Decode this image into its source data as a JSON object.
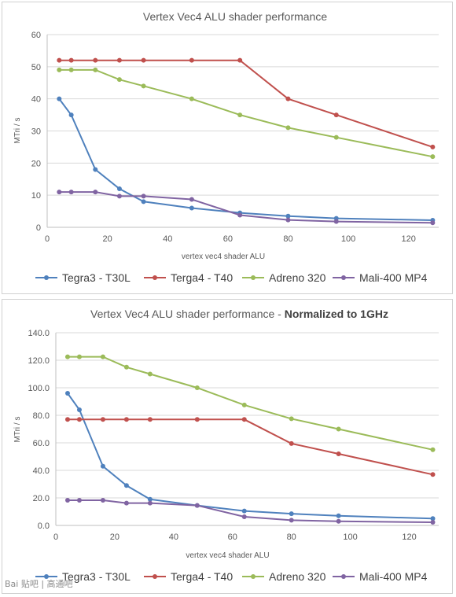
{
  "watermark": "Bai 贴吧 | 高通吧",
  "colors": {
    "Tegra3 - T30L": "#4f81bd",
    "Terga4 - T40": "#c0504d",
    "Adreno 320": "#9bbb59",
    "Mali-400 MP4": "#8064a2"
  },
  "chart_data": [
    {
      "type": "line",
      "title": "Vertex Vec4 ALU shader performance",
      "title_bold": "",
      "xlabel": "vertex vec4 shader ALU",
      "ylabel": "MTri / s",
      "xlim": [
        0,
        130
      ],
      "ylim": [
        0,
        60
      ],
      "xticks": [
        0,
        20,
        40,
        60,
        80,
        100,
        120
      ],
      "yticks": [
        0,
        10,
        20,
        30,
        40,
        50,
        60
      ],
      "ytick_labels": [
        "0",
        "10",
        "20",
        "30",
        "40",
        "50",
        "60"
      ],
      "grid": "horizontal",
      "legend": "bottom",
      "x": [
        4,
        8,
        16,
        24,
        32,
        48,
        64,
        80,
        96,
        128
      ],
      "series": [
        {
          "name": "Tegra3 - T30L",
          "values": [
            40,
            35,
            18,
            12,
            8,
            6,
            4.5,
            3.5,
            2.8,
            2.2
          ]
        },
        {
          "name": "Terga4 - T40",
          "values": [
            52,
            52,
            52,
            52,
            52,
            52,
            52,
            40,
            35,
            25
          ]
        },
        {
          "name": "Adreno 320",
          "values": [
            49,
            49,
            49,
            46,
            44,
            40,
            35,
            31,
            28,
            22
          ]
        },
        {
          "name": "Mali-400 MP4",
          "values": [
            11,
            11,
            11,
            9.7,
            9.7,
            8.7,
            3.8,
            2.3,
            1.8,
            1.4
          ]
        }
      ]
    },
    {
      "type": "line",
      "title": "Vertex Vec4 ALU shader performance - ",
      "title_bold": "Normalized to 1GHz",
      "xlabel": "vertex vec4 shader ALU",
      "ylabel": "MTri / s",
      "xlim": [
        0,
        130
      ],
      "ylim": [
        0,
        140
      ],
      "xticks": [
        0,
        20,
        40,
        60,
        80,
        100,
        120
      ],
      "yticks": [
        0,
        20,
        40,
        60,
        80,
        100,
        120,
        140
      ],
      "ytick_labels": [
        "0.0",
        "20.0",
        "40.0",
        "60.0",
        "80.0",
        "100.0",
        "120.0",
        "140.0"
      ],
      "grid": "horizontal",
      "legend": "bottom",
      "x": [
        4,
        8,
        16,
        24,
        32,
        48,
        64,
        80,
        96,
        128
      ],
      "series": [
        {
          "name": "Tegra3 - T30L",
          "values": [
            96,
            84,
            43,
            29,
            19,
            14.5,
            10.5,
            8.5,
            7,
            5
          ]
        },
        {
          "name": "Terga4 - T40",
          "values": [
            77,
            77,
            77,
            77,
            77,
            77,
            77,
            59.5,
            52,
            37
          ]
        },
        {
          "name": "Adreno 320",
          "values": [
            122.5,
            122.5,
            122.5,
            115,
            110,
            100,
            87.5,
            77.5,
            70,
            55
          ]
        },
        {
          "name": "Mali-400 MP4",
          "values": [
            18.3,
            18.3,
            18.3,
            16.2,
            16.2,
            14.5,
            6.3,
            3.8,
            3,
            2.3
          ]
        }
      ]
    }
  ]
}
